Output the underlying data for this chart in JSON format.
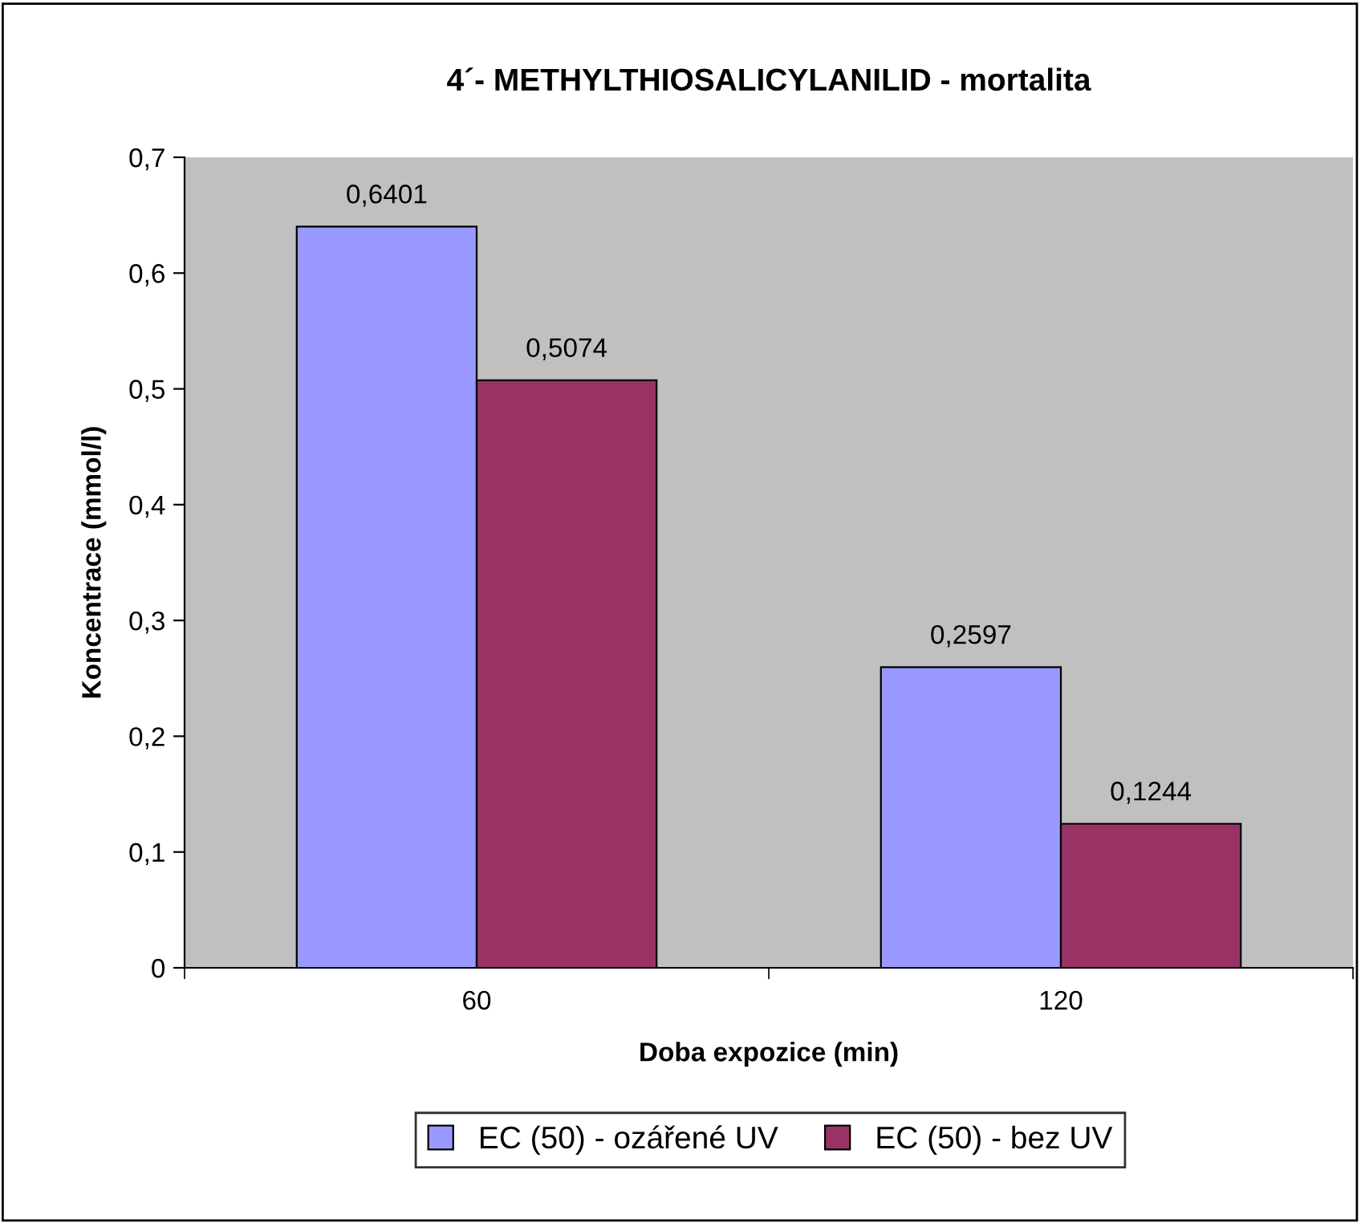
{
  "chart_data": {
    "type": "bar",
    "title": "4´- METHYLTHIOSALICYLANILID - mortalita",
    "xlabel": "Doba expozice (min)",
    "ylabel": "Koncentrace (mmol/l)",
    "categories": [
      "60",
      "120"
    ],
    "series": [
      {
        "name": "EC (50) - ozářené UV",
        "color": "#9999ff",
        "values": [
          0.6401,
          0.2597
        ],
        "value_labels": [
          "0,6401",
          "0,2597"
        ]
      },
      {
        "name": "EC (50) - bez UV",
        "color": "#993366",
        "values": [
          0.5074,
          0.1244
        ],
        "value_labels": [
          "0,5074",
          "0,1244"
        ]
      }
    ],
    "ylim": [
      0,
      0.7
    ],
    "yticks": [
      {
        "value": 0,
        "label": "0"
      },
      {
        "value": 0.1,
        "label": "0,1"
      },
      {
        "value": 0.2,
        "label": "0,2"
      },
      {
        "value": 0.3,
        "label": "0,3"
      },
      {
        "value": 0.4,
        "label": "0,4"
      },
      {
        "value": 0.5,
        "label": "0,5"
      },
      {
        "value": 0.6,
        "label": "0,6"
      },
      {
        "value": 0.7,
        "label": "0,7"
      }
    ],
    "legend": "bottom"
  }
}
